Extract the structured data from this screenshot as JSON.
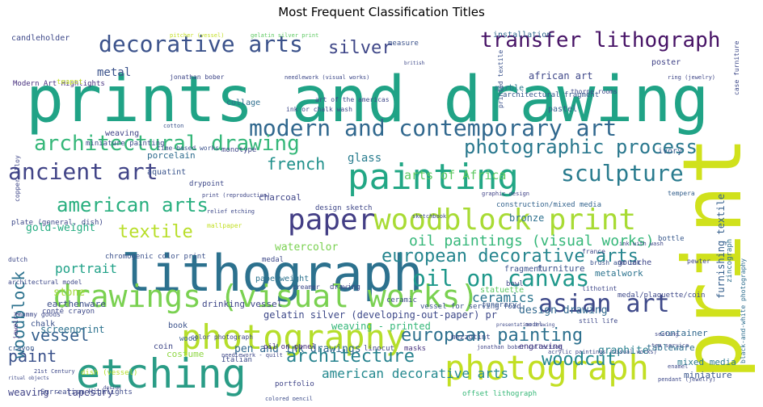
{
  "title": "Most Frequent Classification Titles",
  "chart_data": {
    "type": "wordcloud",
    "title": "Most Frequent Classification Titles",
    "colormap": "viridis",
    "words": [
      {
        "text": "prints and drawing",
        "weight": 1.0,
        "color": "#20a386"
      },
      {
        "text": "print",
        "weight": 0.98,
        "color": "#d0e11c",
        "rotate": -90
      },
      {
        "text": "lithograph",
        "weight": 0.62,
        "color": "#2c718e"
      },
      {
        "text": "painting",
        "weight": 0.42,
        "color": "#22a785"
      },
      {
        "text": "etching",
        "weight": 0.48,
        "color": "#2a9c86"
      },
      {
        "text": "drawings (visual works)",
        "weight": 0.47,
        "color": "#7ad151"
      },
      {
        "text": "photography",
        "weight": 0.45,
        "color": "#b5de2b"
      },
      {
        "text": "photograph",
        "weight": 0.43,
        "color": "#c2df23"
      },
      {
        "text": "woodblock print",
        "weight": 0.38,
        "color": "#a8db34"
      },
      {
        "text": "paper",
        "weight": 0.4,
        "color": "#433e85"
      },
      {
        "text": "modern and contemporary art",
        "weight": 0.3,
        "color": "#31688e"
      },
      {
        "text": "decorative arts",
        "weight": 0.27,
        "color": "#3b528b"
      },
      {
        "text": "transfer lithograph",
        "weight": 0.26,
        "color": "#471366"
      },
      {
        "text": "architectural drawing",
        "weight": 0.26,
        "color": "#35b779"
      },
      {
        "text": "asian art",
        "weight": 0.28,
        "color": "#3e4989"
      },
      {
        "text": "sculpture",
        "weight": 0.28,
        "color": "#297b8e"
      },
      {
        "text": "ancient art",
        "weight": 0.25,
        "color": "#414487"
      },
      {
        "text": "european decorative arts",
        "weight": 0.21,
        "color": "#25858e"
      },
      {
        "text": "oil on canvas",
        "weight": 0.24,
        "color": "#1f988b"
      },
      {
        "text": "photographic process",
        "weight": 0.22,
        "color": "#2a788e"
      },
      {
        "text": "american arts",
        "weight": 0.22,
        "color": "#29af7f"
      },
      {
        "text": "european painting",
        "weight": 0.21,
        "color": "#2d708e"
      },
      {
        "text": "architecture",
        "weight": 0.21,
        "color": "#26828e"
      },
      {
        "text": "silver",
        "weight": 0.22,
        "color": "#3f4788"
      },
      {
        "text": "woodcut",
        "weight": 0.18,
        "color": "#24878e"
      },
      {
        "text": "textile",
        "weight": 0.18,
        "color": "#b8de29"
      },
      {
        "text": "paint",
        "weight": 0.19,
        "color": "#3b528b"
      },
      {
        "text": "vessel",
        "weight": 0.18,
        "color": "#355f8d"
      },
      {
        "text": "woodblock",
        "weight": 0.18,
        "color": "#2c728e",
        "rotate": -90
      },
      {
        "text": "french",
        "weight": 0.17,
        "color": "#21918c"
      },
      {
        "text": "oil paintings (visual works)",
        "weight": 0.16,
        "color": "#35b779"
      },
      {
        "text": "american decorative arts",
        "weight": 0.14,
        "color": "#23888e"
      },
      {
        "text": "ceramics",
        "weight": 0.13,
        "color": "#2b758e"
      },
      {
        "text": "portrait",
        "weight": 0.13,
        "color": "#1fa187"
      },
      {
        "text": "metal",
        "weight": 0.11,
        "color": "#3b528b"
      },
      {
        "text": "glass",
        "weight": 0.11,
        "color": "#287c8e"
      },
      {
        "text": "arts of Africa",
        "weight": 0.11,
        "color": "#5ec962"
      },
      {
        "text": "gold-weight",
        "weight": 0.1,
        "color": "#25ac82"
      },
      {
        "text": "watercolor",
        "weight": 0.1,
        "color": "#7ad151"
      },
      {
        "text": "pen and ink drawings",
        "weight": 0.1,
        "color": "#31688e"
      },
      {
        "text": "design drawing",
        "weight": 0.1,
        "color": "#31688e"
      },
      {
        "text": "graphite",
        "weight": 0.1,
        "color": "#277f8e"
      },
      {
        "text": "bronze",
        "weight": 0.09,
        "color": "#2d708e"
      },
      {
        "text": "stone",
        "weight": 0.09,
        "color": "#a0da39"
      },
      {
        "text": "screenprint",
        "weight": 0.09,
        "color": "#2c728e"
      },
      {
        "text": "mixed media",
        "weight": 0.08,
        "color": "#29798e"
      },
      {
        "text": "miniature",
        "weight": 0.08,
        "color": "#39568c"
      },
      {
        "text": "gelatin silver (developing-out-paper) pr",
        "weight": 0.08,
        "color": "#3e4989"
      },
      {
        "text": "furnishing textile",
        "weight": 0.08,
        "color": "#355f8d",
        "rotate": -90
      },
      {
        "text": "weaving - printed",
        "weight": 0.08,
        "color": "#35b779"
      },
      {
        "text": "costume",
        "weight": 0.07,
        "color": "#8fd744"
      },
      {
        "text": "weaving - tapestry",
        "weight": 0.07,
        "color": "#414487"
      },
      {
        "text": "porcelain",
        "weight": 0.07,
        "color": "#2f6c8e"
      },
      {
        "text": "charcoal",
        "weight": 0.07,
        "color": "#404688"
      },
      {
        "text": "metalwork",
        "weight": 0.07,
        "color": "#2c738e"
      },
      {
        "text": "container",
        "weight": 0.07,
        "color": "#31688e"
      },
      {
        "text": "tableware",
        "weight": 0.07,
        "color": "#2e6f8e"
      },
      {
        "text": "earthenware",
        "weight": 0.07,
        "color": "#3d4e8a"
      },
      {
        "text": "drinking vessel",
        "weight": 0.07,
        "color": "#3f4788"
      },
      {
        "text": "furniture",
        "weight": 0.07,
        "color": "#3b528b"
      },
      {
        "text": "collage",
        "weight": 0.07,
        "color": "#2e6e8e"
      },
      {
        "text": "african art",
        "weight": 0.07,
        "color": "#3f4889"
      },
      {
        "text": "marble",
        "weight": 0.06,
        "color": "#2a788e"
      },
      {
        "text": "aquatint",
        "weight": 0.06,
        "color": "#3a548c"
      },
      {
        "text": "weaving",
        "weight": 0.06,
        "color": "#414487"
      },
      {
        "text": "pastel",
        "weight": 0.06,
        "color": "#35608d"
      },
      {
        "text": "installation",
        "weight": 0.06,
        "color": "#31688e"
      },
      {
        "text": "measure",
        "weight": 0.06,
        "color": "#3b528b"
      },
      {
        "text": "candleholder",
        "weight": 0.06,
        "color": "#3e4989"
      },
      {
        "text": "poster",
        "weight": 0.06,
        "color": "#404387"
      },
      {
        "text": "ivory",
        "weight": 0.06,
        "color": "#38598c"
      },
      {
        "text": "gouache",
        "weight": 0.06,
        "color": "#3f4889"
      },
      {
        "text": "chalk",
        "weight": 0.06,
        "color": "#3b528b"
      },
      {
        "text": "paperweight",
        "weight": 0.06,
        "color": "#2c728e"
      },
      {
        "text": "fragment",
        "weight": 0.06,
        "color": "#3b528b"
      },
      {
        "text": "engraving",
        "weight": 0.06,
        "color": "#453781"
      },
      {
        "text": "crayon",
        "weight": 0.06,
        "color": "#38588c"
      },
      {
        "text": "coin",
        "weight": 0.06,
        "color": "#3f4788"
      },
      {
        "text": "drawing",
        "weight": 0.05,
        "color": "#3e4989"
      },
      {
        "text": "book",
        "weight": 0.06,
        "color": "#3b528b"
      },
      {
        "text": "wood",
        "weight": 0.05,
        "color": "#355f8d"
      },
      {
        "text": "linocut",
        "weight": 0.05,
        "color": "#414487"
      },
      {
        "text": "mezzotint",
        "weight": 0.05,
        "color": "#3e4a89"
      },
      {
        "text": "portfolio",
        "weight": 0.05,
        "color": "#404588"
      },
      {
        "text": "masks",
        "weight": 0.05,
        "color": "#46327e"
      },
      {
        "text": "statuette",
        "weight": 0.05,
        "color": "#5ec962"
      },
      {
        "text": "ceramic",
        "weight": 0.05,
        "color": "#3d4d8a"
      },
      {
        "text": "dish (vessel)",
        "weight": 0.05,
        "color": "#b5de2b"
      },
      {
        "text": "Italian",
        "weight": 0.05,
        "color": "#3e4a89"
      },
      {
        "text": "zincograph",
        "weight": 0.05,
        "color": "#2e6e8e",
        "rotate": -90
      },
      {
        "text": "black-and-white photography",
        "weight": 0.04,
        "color": "#2e6e8e",
        "rotate": -90
      },
      {
        "text": "copper alloy",
        "weight": 0.05,
        "color": "#3f4788",
        "rotate": -90
      },
      {
        "text": "jewelry",
        "weight": 0.04,
        "color": "#46337e",
        "rotate": -90
      },
      {
        "text": "monotype",
        "weight": 0.05,
        "color": "#404688"
      },
      {
        "text": "miniature painting",
        "weight": 0.05,
        "color": "#3d4d8a"
      },
      {
        "text": "construction/mixed media",
        "weight": 0.05,
        "color": "#33638d"
      },
      {
        "text": "conté crayon",
        "weight": 0.05,
        "color": "#3e4989"
      },
      {
        "text": "medal/plaquette/coin",
        "weight": 0.05,
        "color": "#3e4989"
      },
      {
        "text": "chromogenic color print",
        "weight": 0.05,
        "color": "#3b518b"
      },
      {
        "text": "architectural fragment",
        "weight": 0.05,
        "color": "#38598c"
      },
      {
        "text": "Modern Art Highlights",
        "weight": 0.05,
        "color": "#462f7e"
      },
      {
        "text": "art of the americas",
        "weight": 0.05,
        "color": "#3e4989"
      },
      {
        "text": "thorne rooms",
        "weight": 0.05,
        "color": "#3e4a89"
      },
      {
        "text": "ink or chalk wash",
        "weight": 0.05,
        "color": "#3e4989"
      },
      {
        "text": "time-based works",
        "weight": 0.04,
        "color": "#3b518b"
      },
      {
        "text": "gelatin silver print",
        "weight": 0.04,
        "color": "#5ec962"
      },
      {
        "text": "print (reproduction)",
        "weight": 0.04,
        "color": "#3f4788"
      },
      {
        "text": "drypoint",
        "weight": 0.05,
        "color": "#3e4989"
      },
      {
        "text": "design sketch",
        "weight": 0.05,
        "color": "#3f4788"
      },
      {
        "text": "relief etching",
        "weight": 0.04,
        "color": "#3e4989"
      },
      {
        "text": "graphic design",
        "weight": 0.04,
        "color": "#404387"
      },
      {
        "text": "plate (general, dish)",
        "weight": 0.05,
        "color": "#3e4989"
      },
      {
        "text": "tempera",
        "weight": 0.04,
        "color": "#35608d"
      },
      {
        "text": "mallpaper",
        "weight": 0.04,
        "color": "#c2df23"
      },
      {
        "text": "vessel for serving food",
        "weight": 0.05,
        "color": "#3b528b"
      },
      {
        "text": "medal",
        "weight": 0.05,
        "color": "#3e4989"
      },
      {
        "text": "bottle",
        "weight": 0.05,
        "color": "#38598c"
      },
      {
        "text": "lithotint",
        "weight": 0.04,
        "color": "#3f4788"
      },
      {
        "text": "pewter",
        "weight": 0.04,
        "color": "#3f4788"
      },
      {
        "text": "still life",
        "weight": 0.04,
        "color": "#3e4989"
      },
      {
        "text": "fiber-tipped pen",
        "weight": 0.04,
        "color": "#404387"
      },
      {
        "text": "millefiori",
        "weight": 0.04,
        "color": "#3e4989"
      },
      {
        "text": "offset lithograph",
        "weight": 0.05,
        "color": "#37b878"
      },
      {
        "text": "colored pencil",
        "weight": 0.04,
        "color": "#3d4d8a"
      },
      {
        "text": "jonathan bober collection",
        "weight": 0.04,
        "color": "#404588"
      },
      {
        "text": "Surrealism Highlights",
        "weight": 0.05,
        "color": "#3e4a89"
      },
      {
        "text": "21st Century",
        "weight": 0.04,
        "color": "#3e4989"
      },
      {
        "text": "oil on panel",
        "weight": 0.05,
        "color": "#482878"
      },
      {
        "text": "acrylic paintings (visual works)",
        "weight": 0.04,
        "color": "#3e4a89"
      },
      {
        "text": "color photograph",
        "weight": 0.05,
        "color": "#3f4788"
      },
      {
        "text": "brush and ink",
        "weight": 0.05,
        "color": "#3b528b"
      },
      {
        "text": "ink with wash",
        "weight": 0.04,
        "color": "#3f4788"
      },
      {
        "text": "sketchbook",
        "weight": 0.04,
        "color": "#3e4989"
      },
      {
        "text": "bowl",
        "weight": 0.05,
        "color": "#3f4788"
      },
      {
        "text": "funerary",
        "weight": 0.05,
        "color": "#38588c"
      },
      {
        "text": "model",
        "weight": 0.04,
        "color": "#3e4989"
      },
      {
        "text": "teapot",
        "weight": 0.04,
        "color": "#c2df23"
      },
      {
        "text": "jonathan bober",
        "weight": 0.04,
        "color": "#3f4788"
      },
      {
        "text": "pitcher (vessel)",
        "weight": 0.04,
        "color": "#c2df23"
      },
      {
        "text": "needlework (visual works)",
        "weight": 0.04,
        "color": "#3e4989"
      },
      {
        "text": "needlework - quilt",
        "weight": 0.04,
        "color": "#3f4788"
      },
      {
        "text": "cotton",
        "weight": 0.04,
        "color": "#3b528b"
      },
      {
        "text": "ring (jewelry)",
        "weight": 0.04,
        "color": "#3f4788"
      },
      {
        "text": "pendant (jewelry)",
        "weight": 0.04,
        "color": "#3e4989"
      },
      {
        "text": "enamel",
        "weight": 0.04,
        "color": "#3e4989"
      },
      {
        "text": "tea service",
        "weight": 0.04,
        "color": "#3f4788"
      },
      {
        "text": "seating",
        "weight": 0.04,
        "color": "#3f4788"
      },
      {
        "text": "printed textile",
        "weight": 0.04,
        "color": "#3b528b",
        "rotate": -90
      },
      {
        "text": "case furniture",
        "weight": 0.04,
        "color": "#3e4989",
        "rotate": -90
      },
      {
        "text": "architectural model",
        "weight": 0.04,
        "color": "#3e4989"
      },
      {
        "text": "dutch",
        "weight": 0.04,
        "color": "#3e4989"
      },
      {
        "text": "mummy goods",
        "weight": 0.04,
        "color": "#3e4989"
      },
      {
        "text": "creamer",
        "weight": 0.04,
        "color": "#3e4989"
      },
      {
        "text": "france",
        "weight": 0.04,
        "color": "#3f4788"
      },
      {
        "text": "presentation drawing",
        "weight": 0.03,
        "color": "#3e4989"
      },
      {
        "text": "ritual objects",
        "weight": 0.03,
        "color": "#3e4989"
      },
      {
        "text": "british",
        "weight": 0.03,
        "color": "#3e4989"
      },
      {
        "text": "design",
        "weight": 0.03,
        "color": "#3f4788"
      }
    ]
  }
}
